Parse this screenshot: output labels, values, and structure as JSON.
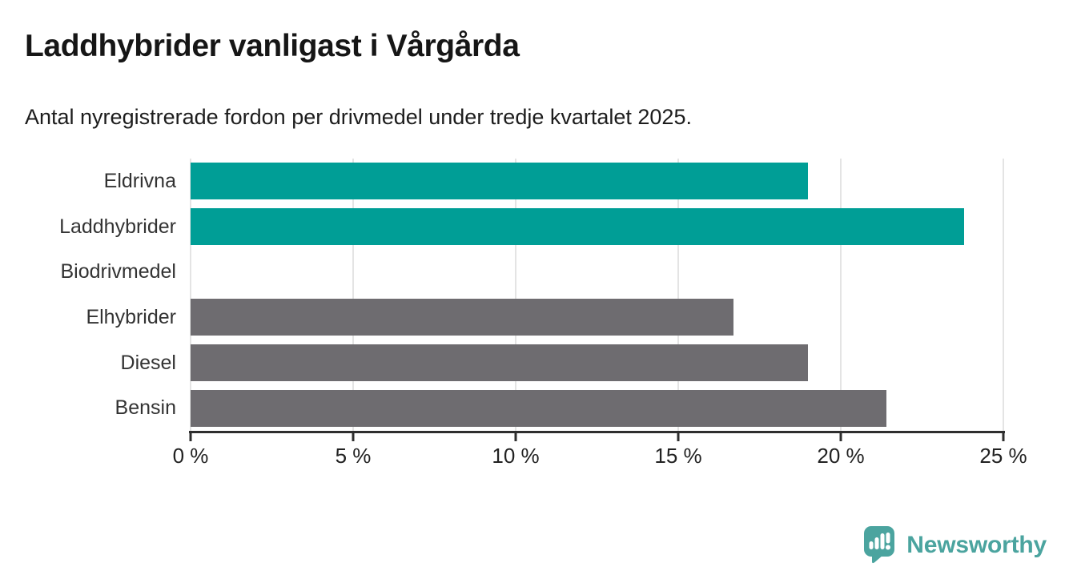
{
  "header": {
    "title": "Laddhybrider vanligast i Vårgårda",
    "subtitle": "Antal nyregistrerade fordon per drivmedel under tredje kvartalet 2025."
  },
  "chart_data": {
    "type": "bar",
    "orientation": "horizontal",
    "title": "Laddhybrider vanligast i Vårgårda",
    "subtitle": "Antal nyregistrerade fordon per drivmedel under tredje kvartalet 2025.",
    "categories": [
      "Eldrivna",
      "Laddhybrider",
      "Biodrivmedel",
      "Elhybrider",
      "Diesel",
      "Bensin"
    ],
    "values": [
      19.0,
      23.8,
      0,
      16.7,
      19.0,
      21.4
    ],
    "unit": "%",
    "bar_colors": [
      "#009E96",
      "#009E96",
      "#009E96",
      "#6E6C70",
      "#6E6C70",
      "#6E6C70"
    ],
    "xlim": [
      0,
      25
    ],
    "x_ticks": [
      0,
      5,
      10,
      15,
      20,
      25
    ],
    "x_tick_labels": [
      "0 %",
      "5 %",
      "10 %",
      "15 %",
      "20 %",
      "25 %"
    ],
    "grid": "vertical",
    "legend": "none",
    "colors": {
      "teal": "#009E96",
      "gray": "#6E6C70",
      "gridline": "#E4E4E4",
      "axis": "#2E2E2E"
    }
  },
  "footer": {
    "logo_text": "Newsworthy",
    "logo_color": "#4BA49F",
    "logo_icon": "newsworthy-bubble-chart-icon"
  }
}
